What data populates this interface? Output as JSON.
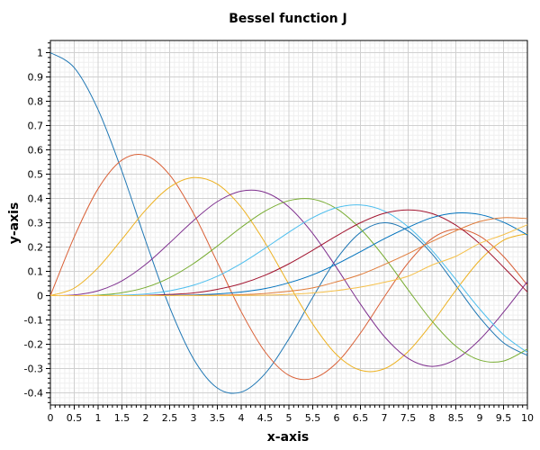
{
  "chart_data": {
    "type": "line",
    "title": "Bessel function J",
    "xlabel": "x-axis",
    "ylabel": "y-axis",
    "xlim": [
      0,
      10
    ],
    "ylim": [
      -0.45,
      1.05
    ],
    "grid": true,
    "legend": "none",
    "x_ticks": [
      "0",
      "0.5",
      "1",
      "1.5",
      "2",
      "2.5",
      "3",
      "3.5",
      "4",
      "4.5",
      "5",
      "5.5",
      "6",
      "6.5",
      "7",
      "7.5",
      "8",
      "8.5",
      "9",
      "9.5",
      "10"
    ],
    "y_ticks": [
      "-0.4",
      "-0.3",
      "-0.2",
      "-0.1",
      "0",
      "0.1",
      "0.2",
      "0.3",
      "0.4",
      "0.5",
      "0.6",
      "0.7",
      "0.8",
      "0.9",
      "1"
    ],
    "x": [
      0,
      0.5,
      1,
      1.5,
      2,
      2.5,
      3,
      3.5,
      4,
      4.5,
      5,
      5.5,
      6,
      6.5,
      7,
      7.5,
      8,
      8.5,
      9,
      9.5,
      10
    ],
    "series": [
      {
        "color": "#1f77b4",
        "values": [
          1,
          0.938,
          0.765,
          0.512,
          0.224,
          -0.048,
          -0.26,
          -0.38,
          -0.397,
          -0.321,
          -0.178,
          -0.007,
          0.151,
          0.26,
          0.3,
          0.266,
          0.172,
          0.042,
          -0.09,
          -0.194,
          -0.246
        ]
      },
      {
        "color": "#d95f35",
        "values": [
          0,
          0.242,
          0.44,
          0.558,
          0.577,
          0.497,
          0.339,
          0.137,
          -0.066,
          -0.231,
          -0.328,
          -0.341,
          -0.277,
          -0.154,
          -0.005,
          0.135,
          0.235,
          0.273,
          0.245,
          0.161,
          0.043
        ]
      },
      {
        "color": "#edb120",
        "values": [
          0,
          0.031,
          0.115,
          0.232,
          0.353,
          0.446,
          0.486,
          0.459,
          0.364,
          0.218,
          0.047,
          -0.117,
          -0.243,
          -0.307,
          -0.301,
          -0.23,
          -0.113,
          0.022,
          0.145,
          0.228,
          0.255
        ]
      },
      {
        "color": "#7e2f8e",
        "values": [
          0,
          0.003,
          0.02,
          0.061,
          0.129,
          0.217,
          0.309,
          0.387,
          0.43,
          0.425,
          0.365,
          0.256,
          0.115,
          -0.035,
          -0.168,
          -0.258,
          -0.291,
          -0.262,
          -0.181,
          -0.068,
          0.058
        ]
      },
      {
        "color": "#77ac30",
        "values": [
          0,
          0,
          0.002,
          0.012,
          0.034,
          0.074,
          0.132,
          0.204,
          0.281,
          0.348,
          0.391,
          0.397,
          0.358,
          0.275,
          0.158,
          0.024,
          -0.105,
          -0.208,
          -0.265,
          -0.269,
          -0.22
        ]
      },
      {
        "color": "#4dbeee",
        "values": [
          0,
          0,
          0,
          0.002,
          0.007,
          0.02,
          0.043,
          0.08,
          0.132,
          0.195,
          0.261,
          0.321,
          0.362,
          0.373,
          0.348,
          0.283,
          0.186,
          0.067,
          -0.055,
          -0.161,
          -0.234
        ]
      },
      {
        "color": "#a2142f",
        "values": [
          0,
          0,
          0,
          0,
          0.001,
          0.005,
          0.011,
          0.026,
          0.049,
          0.084,
          0.131,
          0.187,
          0.246,
          0.3,
          0.339,
          0.353,
          0.338,
          0.29,
          0.214,
          0.117,
          0.015
        ]
      },
      {
        "color": "#0072bd",
        "values": [
          0,
          0,
          0,
          0,
          0,
          0.001,
          0.003,
          0.007,
          0.015,
          0.029,
          0.053,
          0.086,
          0.13,
          0.181,
          0.234,
          0.281,
          0.321,
          0.34,
          0.334,
          0.302,
          0.25
        ]
      },
      {
        "color": "#e07b39",
        "values": [
          0,
          0,
          0,
          0,
          0,
          0,
          0.001,
          0.002,
          0.004,
          0.009,
          0.018,
          0.032,
          0.057,
          0.087,
          0.128,
          0.173,
          0.223,
          0.267,
          0.305,
          0.321,
          0.317
        ]
      },
      {
        "color": "#f5c04a",
        "values": [
          0,
          0,
          0,
          0,
          0,
          0,
          0,
          0,
          0.001,
          0.002,
          0.005,
          0.011,
          0.021,
          0.035,
          0.055,
          0.08,
          0.126,
          0.162,
          0.215,
          0.251,
          0.292
        ]
      }
    ]
  }
}
